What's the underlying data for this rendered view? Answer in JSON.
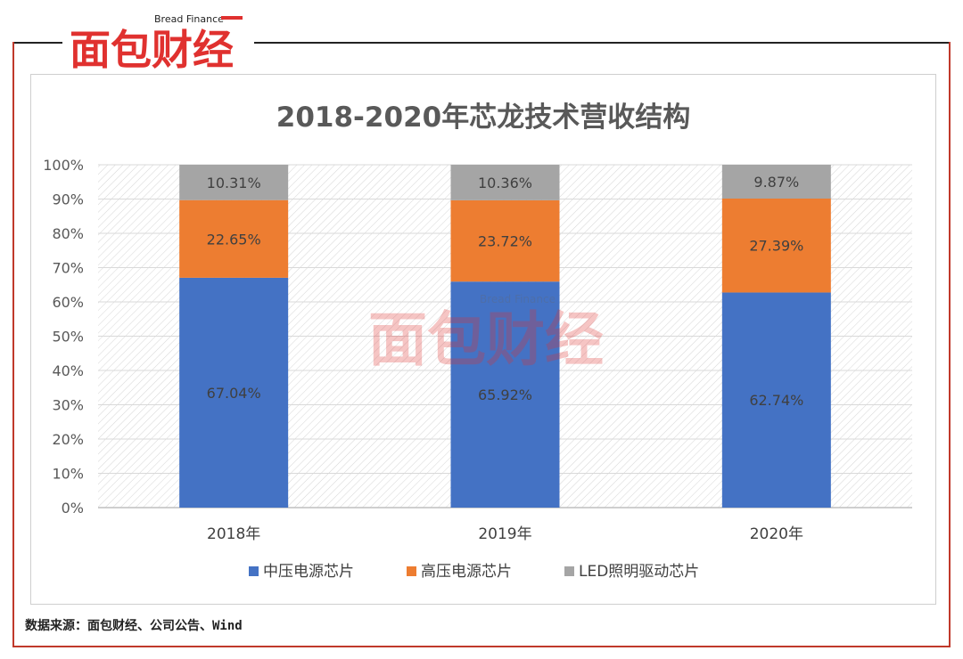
{
  "brand": {
    "name": "面包财经",
    "subtitle": "Bread Finance",
    "color": "#e0312f"
  },
  "source_text": "数据来源：面包财经、公司公告、Wind",
  "chart_data": {
    "type": "bar",
    "stacked": true,
    "title": "2018-2020年芯龙技术营收结构",
    "categories": [
      "2018年",
      "2019年",
      "2020年"
    ],
    "series": [
      {
        "name": "中压电源芯片",
        "color": "#4472c4",
        "values": [
          67.04,
          65.92,
          62.74
        ],
        "labels": [
          "67.04%",
          "65.92%",
          "62.74%"
        ]
      },
      {
        "name": "高压电源芯片",
        "color": "#ed7d31",
        "values": [
          22.65,
          23.72,
          27.39
        ],
        "labels": [
          "22.65%",
          "23.72%",
          "27.39%"
        ]
      },
      {
        "name": "LED照明驱动芯片",
        "color": "#a5a5a5",
        "values": [
          10.31,
          10.36,
          9.87
        ],
        "labels": [
          "10.31%",
          "10.36%",
          "9.87%"
        ]
      }
    ],
    "yticks": [
      "0%",
      "10%",
      "20%",
      "30%",
      "40%",
      "50%",
      "60%",
      "70%",
      "80%",
      "90%",
      "100%"
    ],
    "ylim": [
      0,
      100
    ],
    "grid": true,
    "legend": "bottom"
  }
}
